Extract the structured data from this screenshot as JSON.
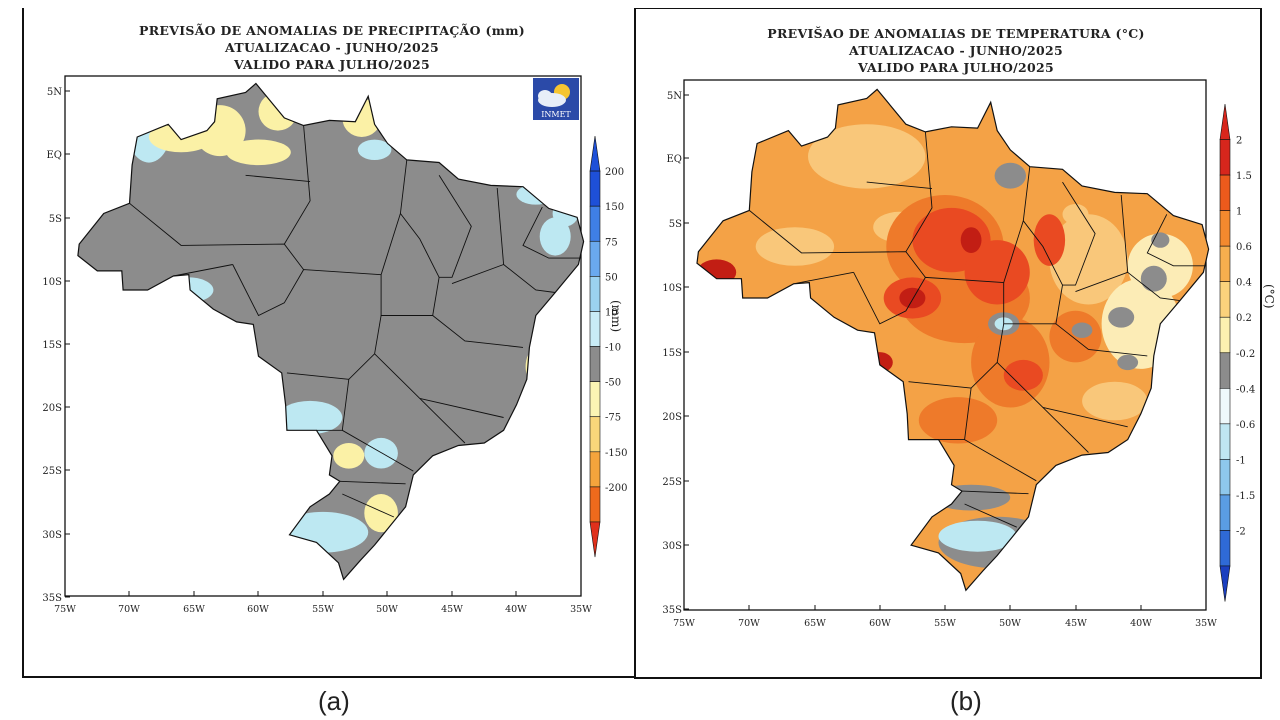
{
  "panel_a": {
    "caption": "(a)",
    "title_line1": "PREVISÃO DE ANOMALIAS DE PRECIPITAÇÃO (mm)",
    "title_line2": "ATUALIZACAO - JUNHO/2025",
    "title_line3": "VALIDO PARA JULHO/2025",
    "unit": "(mm)",
    "logo_text": "INMET",
    "colorbar": [
      {
        "label": "200",
        "color": "#1e50d8"
      },
      {
        "label": "150",
        "color": "#3f7fe6"
      },
      {
        "label": "75",
        "color": "#6aa9ee"
      },
      {
        "label": "50",
        "color": "#9bd2f0"
      },
      {
        "label": "10",
        "color": "#c9ecf6"
      },
      {
        "label": "-10",
        "color": "#8c8c8c"
      },
      {
        "label": "-50",
        "color": "#fbf5b4"
      },
      {
        "label": "-75",
        "color": "#f8d67a"
      },
      {
        "label": "-150",
        "color": "#f4a43c"
      },
      {
        "label": "-200",
        "color": "#ee6a1c"
      },
      {
        "label": "",
        "color": "#e0301c"
      }
    ]
  },
  "panel_b": {
    "caption": "(b)",
    "title_line1": "PREVIŠAO DE ANOMALIAS DE TEMPERATURA (°C)",
    "title_line2": "ATUALIZACAO - JUNHO/2025",
    "title_line3": "VALIDO PARA JULHO/2025",
    "unit": "(°C)",
    "colorbar": [
      {
        "label": "2",
        "color": "#d7261c"
      },
      {
        "label": "1.5",
        "color": "#ec5a1c"
      },
      {
        "label": "1",
        "color": "#f4892e"
      },
      {
        "label": "0.6",
        "color": "#f7ae4e"
      },
      {
        "label": "0.4",
        "color": "#fbd27c"
      },
      {
        "label": "0.2",
        "color": "#fcf1b0"
      },
      {
        "label": "-0.2",
        "color": "#8c8c8c"
      },
      {
        "label": "-0.4",
        "color": "#eef8fb"
      },
      {
        "label": "-0.6",
        "color": "#bfe6f2"
      },
      {
        "label": "-1",
        "color": "#8ec8ec"
      },
      {
        "label": "-1.5",
        "color": "#5a9de3"
      },
      {
        "label": "-2",
        "color": "#2f6ad6"
      },
      {
        "label": "",
        "color": "#1b3fbf"
      }
    ]
  },
  "axes": {
    "lat_labels": [
      "5N",
      "EQ",
      "5S",
      "10S",
      "15S",
      "20S",
      "25S",
      "30S",
      "35S"
    ],
    "lon_labels": [
      "75W",
      "70W",
      "65W",
      "60W",
      "55W",
      "50W",
      "45W",
      "40W",
      "35W"
    ]
  },
  "colors": {
    "gray": "#8c8c8c",
    "light_blue": "#bde8f2",
    "light_yellow": "#fbf1a6",
    "t_very_light": "#fcecb6",
    "t_light": "#f9c77a",
    "t_orange": "#f4a246",
    "t_dark": "#ee7a2a",
    "t_red": "#e94a22",
    "t_dark_red": "#c21e14"
  }
}
